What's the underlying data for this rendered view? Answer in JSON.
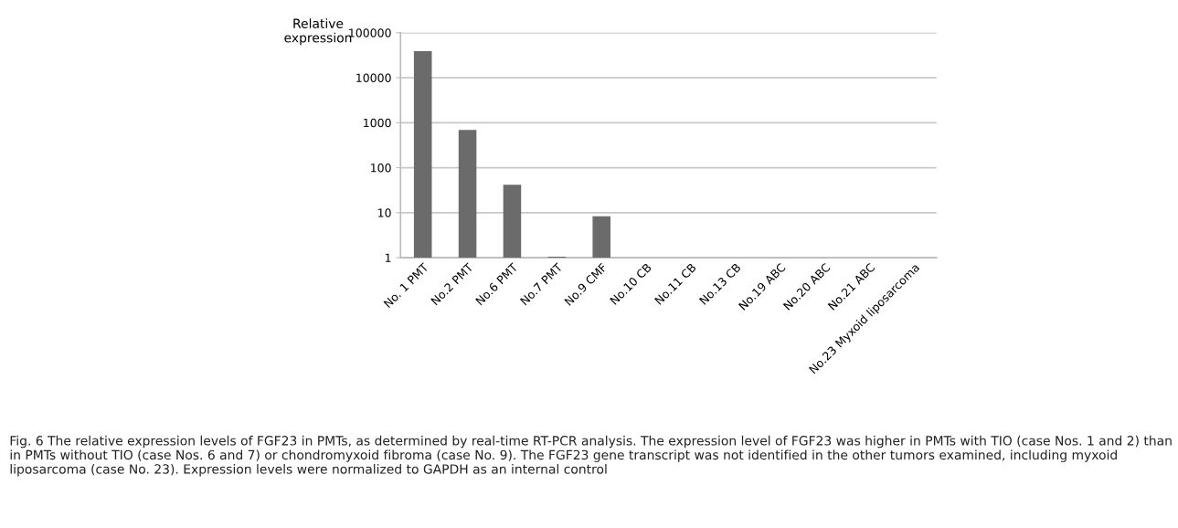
{
  "chart_data": {
    "type": "bar",
    "categories": [
      "No. 1 PMT",
      "No.2 PMT",
      "No.6 PMT",
      "No.7 PMT",
      "No.9 CMF",
      "No.10 CB",
      "No.11 CB",
      "No.13 CB",
      "No.19 ABC",
      "No.20 ABC",
      "No.21 ABC",
      "No.23 Myxoid liposarcoma"
    ],
    "values": [
      39000,
      690,
      42,
      1.05,
      8.3,
      null,
      null,
      null,
      null,
      null,
      null,
      null
    ],
    "color": "#6b6b6b",
    "ylabel": "Relative expression",
    "log": true,
    "ylim": [
      1,
      100000
    ],
    "yticks": [
      1,
      10,
      100,
      1000,
      10000,
      100000
    ],
    "grid": "y",
    "annotations": [
      "Fig. 6 The relative expression levels of FGF23 in PMTs, as determined by real-time RT-PCR analysis. The expression level of FGF23 was higher in PMTs with TIO (case Nos. 1 and 2) than in PMTs without TIO (case Nos. 6 and 7) or chondromyxoid fibroma (case No. 9). The FGF23 gene transcript was not identified in the other tumors examined, including myxoid liposarcoma (case No. 23). Expression levels were normalized to GAPDH as an internal control"
    ]
  }
}
